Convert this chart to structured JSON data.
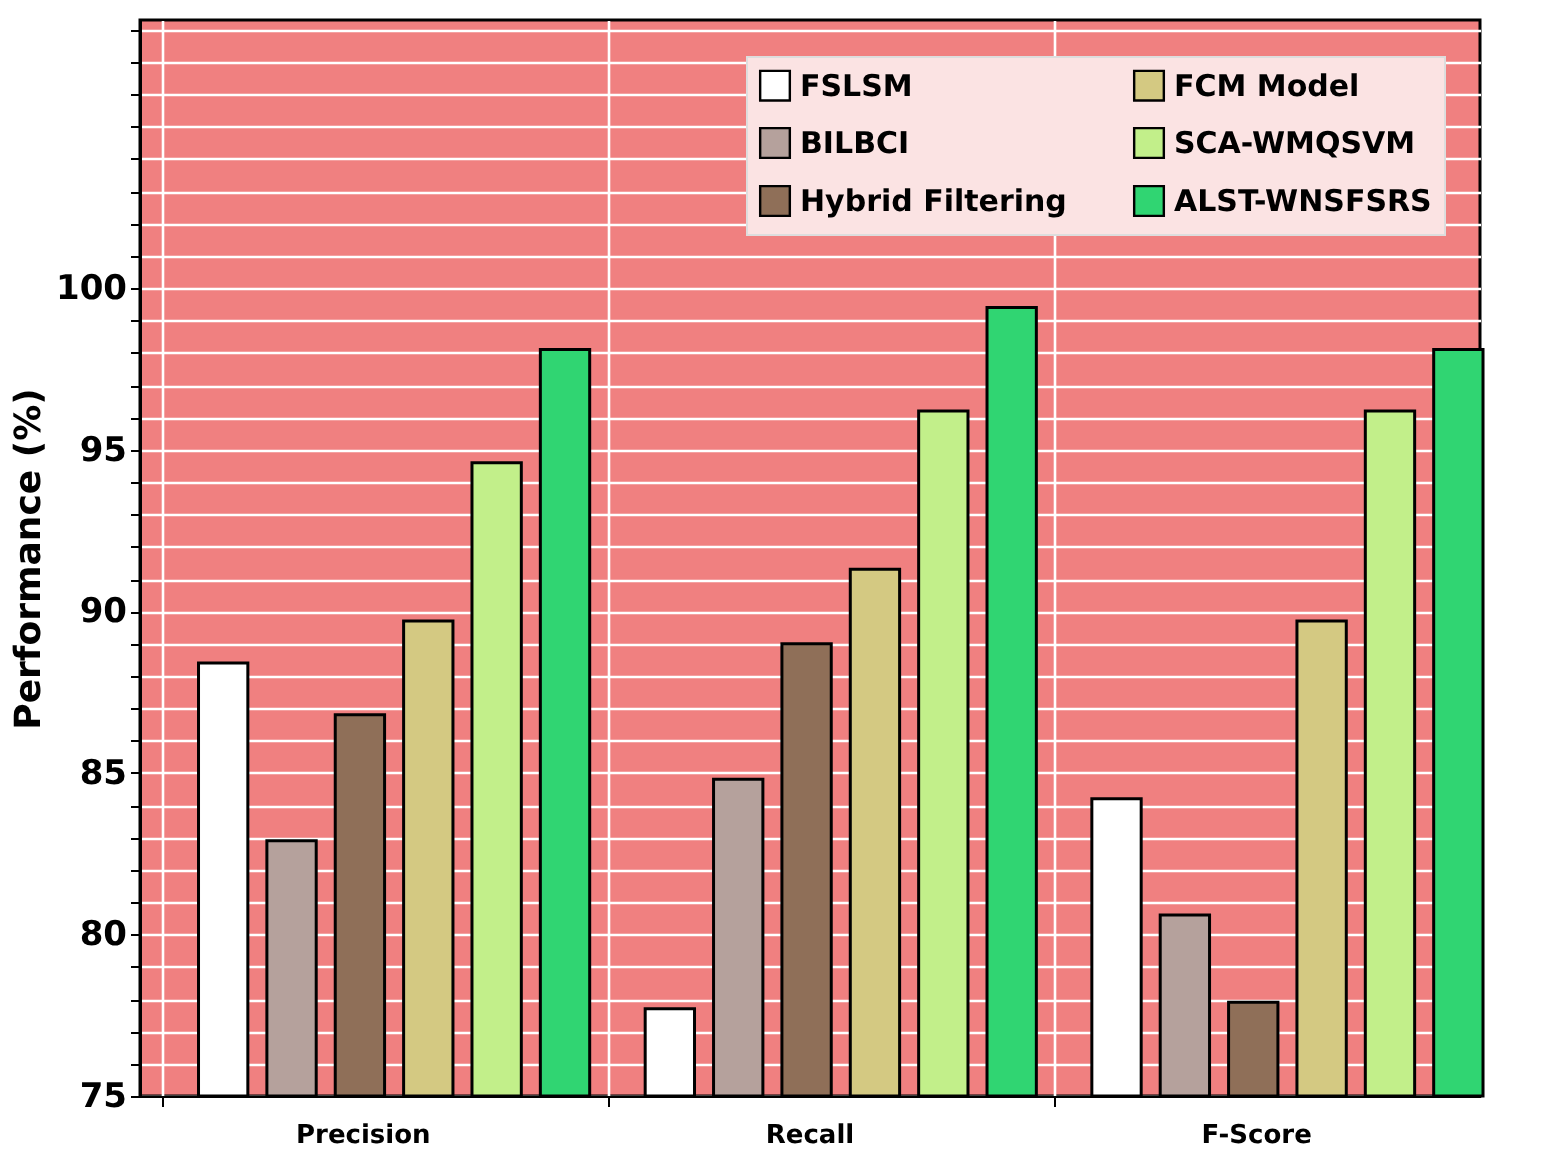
{
  "chart_data": {
    "type": "bar",
    "ylabel": "Performance (%)",
    "categories": [
      "Precision",
      "Recall",
      "F-Score"
    ],
    "series": [
      {
        "name": "FSLSM",
        "color": "#ffffff",
        "values": [
          88.4,
          77.7,
          84.2
        ]
      },
      {
        "name": "BILBCI",
        "color": "#b5a19c",
        "values": [
          82.9,
          84.8,
          80.6
        ]
      },
      {
        "name": "Hybrid Filtering",
        "color": "#8f6f58",
        "values": [
          86.8,
          89.0,
          77.9
        ]
      },
      {
        "name": "FCM Model",
        "color": "#d4c982",
        "values": [
          89.7,
          91.3,
          89.7
        ]
      },
      {
        "name": "SCA-WMQSVM",
        "color": "#c2ef8a",
        "values": [
          94.6,
          96.2,
          96.2
        ]
      },
      {
        "name": "ALST-WNSFSRS",
        "color": "#30d572",
        "values": [
          98.1,
          99.4,
          98.1
        ]
      }
    ],
    "ylim": [
      75,
      108.3
    ],
    "yticks": [
      75,
      80,
      85,
      90,
      95,
      100
    ],
    "grid": true,
    "legend": "top right"
  }
}
